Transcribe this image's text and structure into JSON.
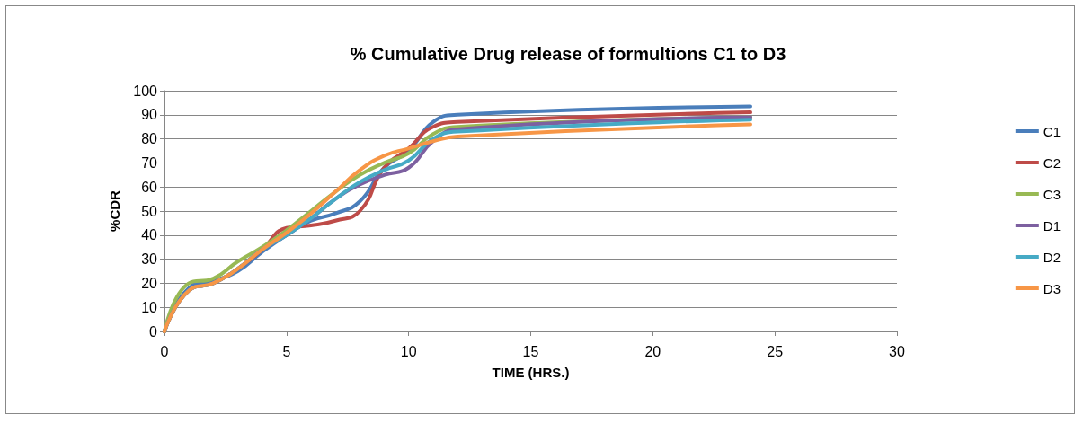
{
  "chart_data": {
    "type": "line",
    "title": "% Cumulative Drug release of formultions C1 to D3",
    "xlabel": "TIME (HRS.)",
    "ylabel": "%CDR",
    "x": [
      0,
      1,
      2,
      3,
      4,
      5,
      6,
      7,
      8,
      9,
      10,
      11,
      12,
      24
    ],
    "series": [
      {
        "name": "C1",
        "color": "#4a7ebb",
        "values": [
          0,
          18,
          21,
          25,
          33,
          40,
          46,
          49,
          54,
          68,
          75,
          87,
          90,
          93.5
        ]
      },
      {
        "name": "C2",
        "color": "#be4b48",
        "values": [
          0,
          17,
          20,
          26,
          34,
          43,
          44,
          46,
          50,
          68,
          76,
          85,
          87,
          91
        ]
      },
      {
        "name": "C3",
        "color": "#98b954",
        "values": [
          0,
          20,
          22,
          29,
          35,
          42,
          50,
          58,
          65,
          70,
          74,
          82,
          85,
          89
        ]
      },
      {
        "name": "D1",
        "color": "#7d60a0",
        "values": [
          0,
          17,
          20,
          26,
          34,
          40,
          47,
          55,
          61,
          65,
          68,
          79,
          84,
          89
        ]
      },
      {
        "name": "D2",
        "color": "#46aac5",
        "values": [
          0,
          17,
          20,
          26,
          34,
          40,
          47,
          55,
          62,
          67,
          71,
          80,
          83,
          88
        ]
      },
      {
        "name": "D3",
        "color": "#f79646",
        "values": [
          0,
          17,
          20,
          26,
          34,
          41,
          49,
          58,
          67,
          73,
          76,
          79,
          81,
          86
        ]
      }
    ],
    "xlim": [
      0,
      30
    ],
    "xticks": [
      0,
      5,
      10,
      15,
      20,
      25,
      30
    ],
    "ylim": [
      0,
      100
    ],
    "yticks": [
      0,
      10,
      20,
      30,
      40,
      50,
      60,
      70,
      80,
      90,
      100
    ],
    "grid": "y",
    "legend": "right",
    "marker": "none",
    "line_style": "solid"
  }
}
